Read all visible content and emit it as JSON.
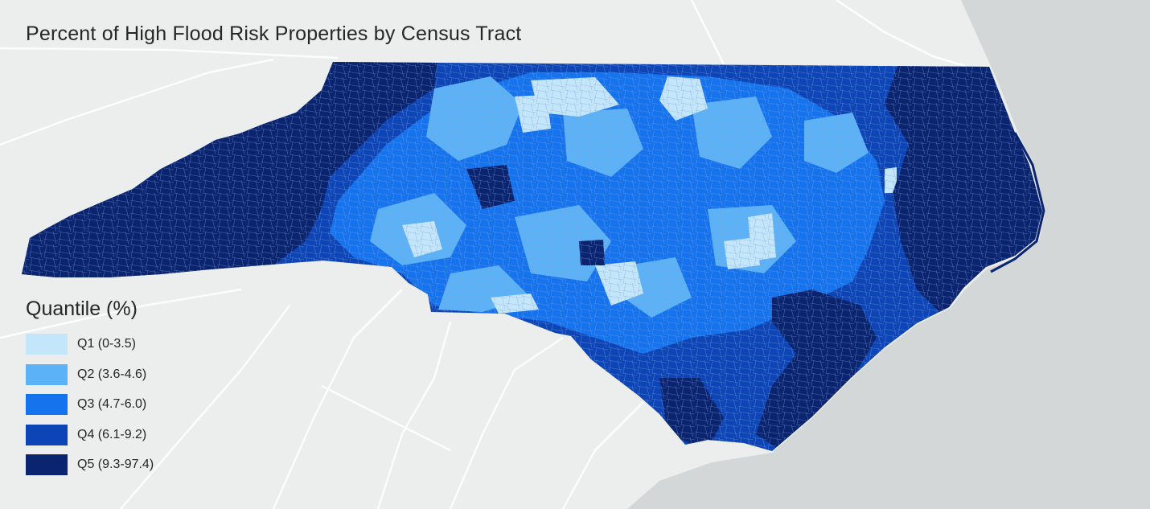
{
  "title": "Percent of High Flood Risk Properties by Census Tract",
  "legend": {
    "title": "Quantile (%)",
    "items": [
      {
        "label": "Q1 (0-3.5)",
        "color": "#c4e6fb"
      },
      {
        "label": "Q2 (3.6-4.6)",
        "color": "#5cb2f6"
      },
      {
        "label": "Q3 (4.7-6.0)",
        "color": "#1673ee"
      },
      {
        "label": "Q4 (6.1-9.2)",
        "color": "#0d45b7"
      },
      {
        "label": "Q5 (9.3-97.4)",
        "color": "#0a2470"
      }
    ]
  },
  "colors": {
    "background": "#eceded",
    "ocean": "#d4d7d8",
    "road": "#ffffff",
    "tract_border": "#7f9fd4"
  }
}
